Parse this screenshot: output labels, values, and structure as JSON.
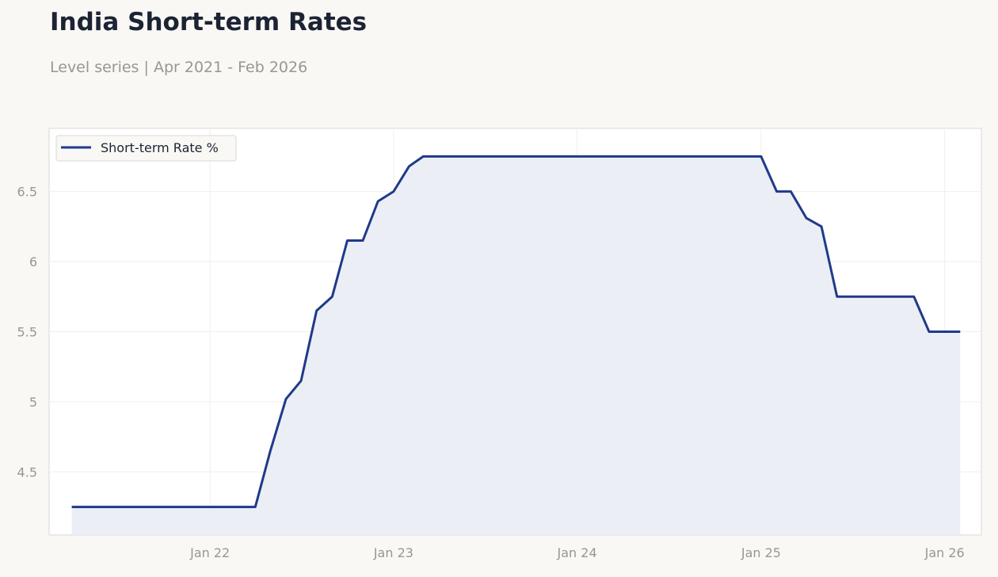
{
  "chart_data": {
    "type": "line",
    "title": "India Short-term Rates",
    "subtitle": "Level series | Apr 2021 - Feb 2026",
    "xlabel": "",
    "ylabel": "",
    "x_ticks": [
      "Jan 22",
      "Jan 23",
      "Jan 24",
      "Jan 25",
      "Jan 26"
    ],
    "y_ticks": [
      "4.5",
      "5",
      "5.5",
      "6",
      "6.5"
    ],
    "ylim": [
      4.05,
      6.95
    ],
    "xlim": [
      "2021-02-15",
      "2026-03-15"
    ],
    "grid": true,
    "legend_position": "top-left",
    "series": [
      {
        "name": "Short-term Rate %",
        "color": "#1f3a8a",
        "fill": "#eceef5",
        "x": [
          "2021-04-01",
          "2021-05-01",
          "2021-06-01",
          "2021-07-01",
          "2021-08-01",
          "2021-09-01",
          "2021-10-01",
          "2021-11-01",
          "2021-12-01",
          "2022-01-01",
          "2022-02-01",
          "2022-03-01",
          "2022-04-01",
          "2022-05-01",
          "2022-06-01",
          "2022-07-01",
          "2022-08-01",
          "2022-09-01",
          "2022-10-01",
          "2022-11-01",
          "2022-12-01",
          "2023-01-01",
          "2023-02-01",
          "2023-03-01",
          "2023-04-01",
          "2023-05-01",
          "2023-06-01",
          "2023-07-01",
          "2023-08-01",
          "2023-09-01",
          "2023-10-01",
          "2023-11-01",
          "2023-12-01",
          "2024-01-01",
          "2024-02-01",
          "2024-03-01",
          "2024-04-01",
          "2024-05-01",
          "2024-06-01",
          "2024-07-01",
          "2024-08-01",
          "2024-09-01",
          "2024-10-01",
          "2024-11-01",
          "2024-12-01",
          "2025-01-01",
          "2025-02-01",
          "2025-03-01",
          "2025-04-01",
          "2025-05-01",
          "2025-06-01",
          "2025-07-01",
          "2025-08-01",
          "2025-09-01",
          "2025-10-01",
          "2025-11-01",
          "2025-12-01",
          "2026-01-01",
          "2026-02-01"
        ],
        "values": [
          4.25,
          4.25,
          4.25,
          4.25,
          4.25,
          4.25,
          4.25,
          4.25,
          4.25,
          4.25,
          4.25,
          4.25,
          4.25,
          4.65,
          5.02,
          5.15,
          5.65,
          5.75,
          6.15,
          6.15,
          6.43,
          6.5,
          6.68,
          6.75,
          6.75,
          6.75,
          6.75,
          6.75,
          6.75,
          6.75,
          6.75,
          6.75,
          6.75,
          6.75,
          6.75,
          6.75,
          6.75,
          6.75,
          6.75,
          6.75,
          6.75,
          6.75,
          6.75,
          6.75,
          6.75,
          6.75,
          6.5,
          6.5,
          6.31,
          6.25,
          5.75,
          5.75,
          5.75,
          5.75,
          5.75,
          5.75,
          5.5,
          5.5,
          5.5
        ]
      }
    ]
  }
}
